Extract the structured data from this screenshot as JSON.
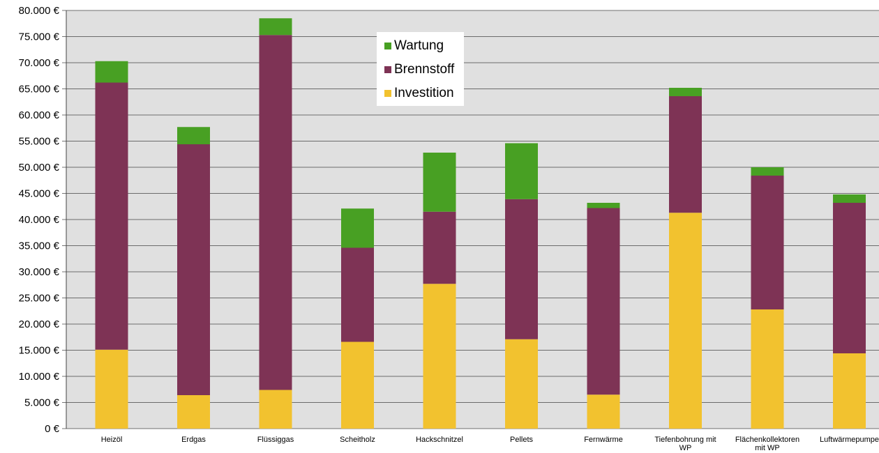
{
  "chart_data": {
    "type": "bar",
    "stacked": true,
    "categories": [
      "Heizöl",
      "Erdgas",
      "Flüssiggas",
      "Scheitholz",
      "Hackschnitzel",
      "Pellets",
      "Fernwärme",
      "Tiefenbohrung mit WP",
      "Flächenkollektoren mit WP",
      "Luftwärmepumpe"
    ],
    "category_lines": [
      [
        "Heizöl"
      ],
      [
        "Erdgas"
      ],
      [
        "Flüssiggas"
      ],
      [
        "Scheitholz"
      ],
      [
        "Hackschnitzel"
      ],
      [
        "Pellets"
      ],
      [
        "Fernwärme"
      ],
      [
        "Tiefenbohrung mit",
        "WP"
      ],
      [
        "Flächenkollektoren",
        "mit WP"
      ],
      [
        "Luftwärmepumpe"
      ]
    ],
    "series": [
      {
        "name": "Investition",
        "color": "#F2C22F",
        "values": [
          15100,
          6400,
          7400,
          16600,
          27700,
          17100,
          6500,
          41300,
          22800,
          14400
        ]
      },
      {
        "name": "Brennstoff",
        "color": "#7E3355",
        "values": [
          51100,
          48000,
          67900,
          18000,
          13800,
          26800,
          35700,
          22300,
          25600,
          28800
        ]
      },
      {
        "name": "Wartung",
        "color": "#48A023",
        "values": [
          4100,
          3300,
          3200,
          7500,
          11300,
          10700,
          1000,
          1600,
          1600,
          1600
        ]
      }
    ],
    "ylim": [
      0,
      80000
    ],
    "ytick_step": 5000,
    "yticks": [
      "0 €",
      "5.000 €",
      "10.000 €",
      "15.000 €",
      "20.000 €",
      "25.000 €",
      "30.000 €",
      "35.000 €",
      "40.000 €",
      "45.000 €",
      "50.000 €",
      "55.000 €",
      "60.000 €",
      "65.000 €",
      "70.000 €",
      "75.000 €",
      "80.000 €"
    ],
    "legend": {
      "placement": "top-center",
      "entries": [
        "Wartung",
        "Brennstoff",
        "Investition"
      ]
    },
    "grid": true,
    "plot_background": "#E0E0E0",
    "xlabel": "",
    "ylabel": ""
  }
}
